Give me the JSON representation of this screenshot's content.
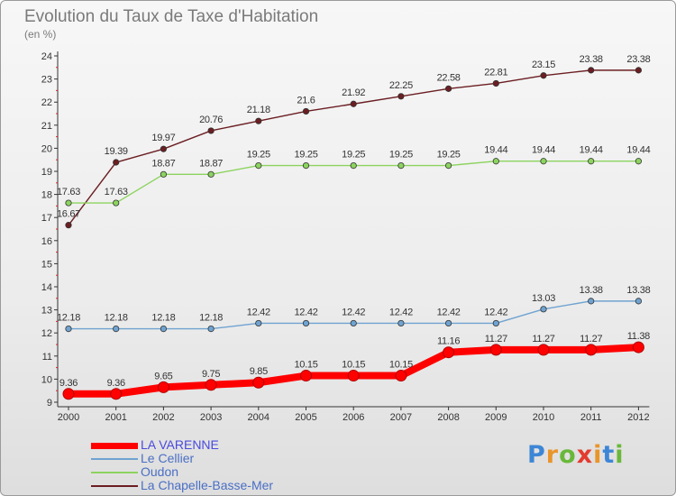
{
  "title": "Evolution du Taux de Taxe d'Habitation",
  "subtitle": "(en %)",
  "chart_data": {
    "type": "line",
    "title": "Evolution du Taux de Taxe d'Habitation",
    "ylabel": "(en %)",
    "x": [
      "2000",
      "2001",
      "2002",
      "2003",
      "2004",
      "2005",
      "2006",
      "2007",
      "2008",
      "2009",
      "2010",
      "2011",
      "2012"
    ],
    "ylim": [
      9,
      24
    ],
    "yticks": [
      "9",
      "10",
      "11",
      "12",
      "13",
      "14",
      "15",
      "16",
      "17",
      "18",
      "19",
      "20",
      "21",
      "22",
      "23",
      "24"
    ],
    "grid": false,
    "legend_position": "bottom-left",
    "series": [
      {
        "name": "La Chapelle-Basse-Mer",
        "color": "#6b1e22",
        "values": [
          16.67,
          19.39,
          19.97,
          20.76,
          21.18,
          21.6,
          21.92,
          22.25,
          22.58,
          22.81,
          23.15,
          23.38,
          23.38
        ],
        "labels": [
          "16.67",
          "19.39",
          "19.97",
          "20.76",
          "21.18",
          "21.6",
          "21.92",
          "22.25",
          "22.58",
          "22.81",
          "23.15",
          "23.38",
          "23.38"
        ]
      },
      {
        "name": "Oudon",
        "color": "#8cd35f",
        "values": [
          17.63,
          17.63,
          18.87,
          18.87,
          19.25,
          19.25,
          19.25,
          19.25,
          19.25,
          19.44,
          19.44,
          19.44,
          19.44
        ],
        "labels": [
          "17.63",
          "17.63",
          "18.87",
          "18.87",
          "19.25",
          "19.25",
          "19.25",
          "19.25",
          "19.25",
          "19.44",
          "19.44",
          "19.44",
          "19.44"
        ]
      },
      {
        "name": "Le Cellier",
        "color": "#6fa3d1",
        "values": [
          12.18,
          12.18,
          12.18,
          12.18,
          12.42,
          12.42,
          12.42,
          12.42,
          12.42,
          12.42,
          13.03,
          13.38,
          13.38
        ],
        "labels": [
          "12.18",
          "12.18",
          "12.18",
          "12.18",
          "12.42",
          "12.42",
          "12.42",
          "12.42",
          "12.42",
          "12.42",
          "13.03",
          "13.38",
          "13.38"
        ]
      },
      {
        "name": "LA VARENNE",
        "color": "#ff0000",
        "values": [
          9.36,
          9.36,
          9.65,
          9.75,
          9.85,
          10.15,
          10.15,
          10.15,
          11.16,
          11.27,
          11.27,
          11.27,
          11.38
        ],
        "labels": [
          "9.36",
          "9.36",
          "9.65",
          "9.75",
          "9.85",
          "10.15",
          "10.15",
          "10.15",
          "11.16",
          "11.27",
          "11.27",
          "11.27",
          "11.38"
        ]
      }
    ]
  },
  "legend": {
    "items": [
      {
        "label": "LA VARENNE",
        "color": "#ff0000",
        "thick": true
      },
      {
        "label": "Le Cellier",
        "color": "#6fa3d1",
        "thick": false
      },
      {
        "label": "Oudon",
        "color": "#8cd35f",
        "thick": false
      },
      {
        "label": "La Chapelle-Basse-Mer",
        "color": "#6b1e22",
        "thick": false
      }
    ]
  },
  "logo": {
    "letters": [
      "P",
      "r",
      "o",
      "x",
      "i",
      "t",
      "i"
    ],
    "colors": [
      "#3d86d6",
      "#e8962a",
      "#69b83a",
      "#e33b2e",
      "#e8962a",
      "#3d86d6",
      "#69b83a"
    ]
  }
}
